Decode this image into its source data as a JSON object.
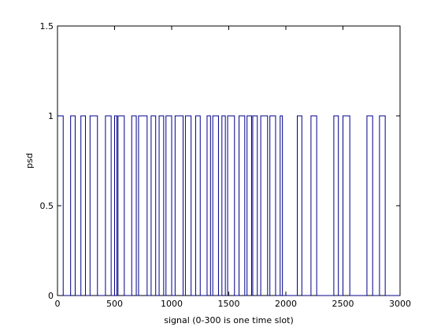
{
  "chart_data": {
    "type": "line",
    "title": "",
    "xlabel": "signal (0-300 is one time slot)",
    "ylabel": "psd",
    "xlim": [
      0,
      3000
    ],
    "ylim": [
      0,
      1.5
    ],
    "xticks": [
      0,
      500,
      1000,
      1500,
      2000,
      2500,
      3000
    ],
    "yticks": [
      0,
      0.5,
      1,
      1.5
    ],
    "xtick_labels": [
      "0",
      "500",
      "1000",
      "1500",
      "2000",
      "2500",
      "3000"
    ],
    "ytick_labels": [
      "0",
      "0.5",
      "1",
      "1.5"
    ],
    "grid": false,
    "series": [
      {
        "color": "#00008b",
        "pulses": [
          [
            0,
            50
          ],
          [
            115,
            155
          ],
          [
            205,
            245
          ],
          [
            285,
            350
          ],
          [
            420,
            470
          ],
          [
            500,
            520
          ],
          [
            530,
            585
          ],
          [
            650,
            690
          ],
          [
            710,
            785
          ],
          [
            820,
            860
          ],
          [
            890,
            930
          ],
          [
            950,
            1000
          ],
          [
            1030,
            1100
          ],
          [
            1120,
            1170
          ],
          [
            1210,
            1250
          ],
          [
            1310,
            1340
          ],
          [
            1360,
            1410
          ],
          [
            1440,
            1470
          ],
          [
            1490,
            1550
          ],
          [
            1590,
            1640
          ],
          [
            1660,
            1700
          ],
          [
            1710,
            1750
          ],
          [
            1780,
            1840
          ],
          [
            1860,
            1910
          ],
          [
            1950,
            1970
          ],
          [
            2100,
            2140
          ],
          [
            2220,
            2270
          ],
          [
            2420,
            2460
          ],
          [
            2500,
            2560
          ],
          [
            2710,
            2760
          ],
          [
            2820,
            2870
          ]
        ]
      }
    ]
  }
}
